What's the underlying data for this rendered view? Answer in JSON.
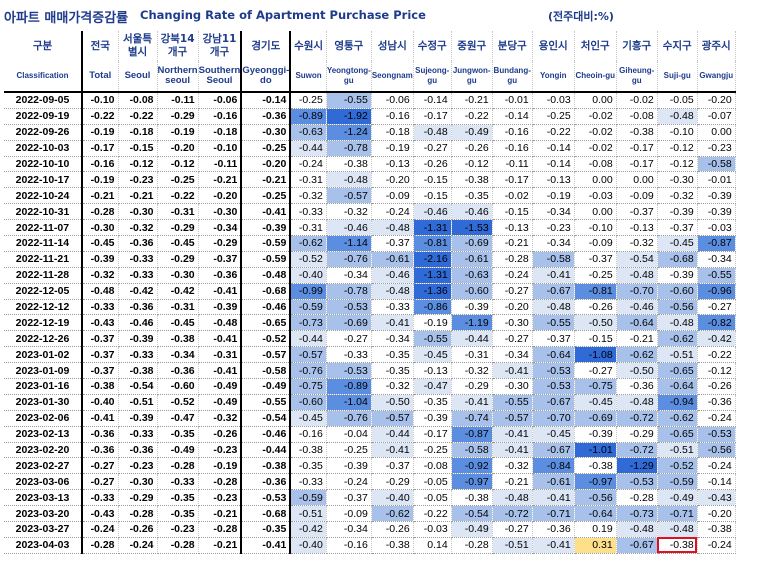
{
  "title": {
    "korean": "아파트 매매가격증감률",
    "english": "Changing Rate of Apartment Purchase Price",
    "unit": "(전주대비:%)"
  },
  "header": {
    "top": [
      "구분",
      "전국",
      "서울특별시",
      "강북14개구",
      "강남11개구",
      "경기도",
      "수원시",
      "영통구",
      "성남시",
      "수정구",
      "중원구",
      "분당구",
      "용인시",
      "처인구",
      "기흥구",
      "수지구",
      "광주시"
    ],
    "bottom": [
      "Classification",
      "Total",
      "Seoul",
      "Northern seoul",
      "Southern Seoul",
      "Gyeonggi-do",
      "Suwon",
      "Yeongtong-gu",
      "Seongnam",
      "Sujeong-gu",
      "Jungwon-gu",
      "Bundang-gu",
      "Yongin",
      "Cheoin-gu",
      "Giheung-gu",
      "Suji-gu",
      "Gwangju"
    ]
  },
  "colors": {
    "title_blue": "#1f3c8c",
    "shade_light": "#dce6f5",
    "shade_mid": "#a8c1ea",
    "shade_strong": "#5b8ee0",
    "shade_dark": "#2f6ad6",
    "highlight_yellow": "#ffe08a",
    "highlight_red_border": "#e01020"
  },
  "rows": [
    {
      "date": "2022-09-05",
      "values": [
        "-0.10",
        "-0.08",
        "-0.11",
        "-0.06",
        "-0.14",
        "-0.25",
        "-0.55",
        "-0.06",
        "-0.14",
        "-0.21",
        "-0.01",
        "-0.03",
        "0.00",
        "-0.02",
        "-0.05",
        "-0.20"
      ],
      "shade": [
        0,
        0,
        0,
        0,
        0,
        0,
        2,
        0,
        0,
        0,
        0,
        0,
        0,
        0,
        0,
        0
      ]
    },
    {
      "date": "2022-09-19",
      "values": [
        "-0.22",
        "-0.22",
        "-0.29",
        "-0.16",
        "-0.36",
        "-0.89",
        "-1.92",
        "-0.16",
        "-0.17",
        "-0.22",
        "-0.14",
        "-0.25",
        "-0.02",
        "-0.08",
        "-0.48",
        "-0.07"
      ],
      "shade": [
        0,
        0,
        0,
        0,
        0,
        3,
        4,
        0,
        0,
        0,
        0,
        0,
        0,
        0,
        1,
        0
      ]
    },
    {
      "date": "2022-09-26",
      "values": [
        "-0.19",
        "-0.18",
        "-0.19",
        "-0.18",
        "-0.30",
        "-0.63",
        "-1.24",
        "-0.18",
        "-0.48",
        "-0.49",
        "-0.16",
        "-0.22",
        "-0.02",
        "-0.38",
        "-0.10",
        "0.00"
      ],
      "shade": [
        0,
        0,
        0,
        0,
        0,
        2,
        3,
        0,
        1,
        1,
        0,
        0,
        0,
        0,
        0,
        0
      ]
    },
    {
      "date": "2022-10-03",
      "values": [
        "-0.17",
        "-0.15",
        "-0.20",
        "-0.10",
        "-0.25",
        "-0.44",
        "-0.78",
        "-0.19",
        "-0.27",
        "-0.26",
        "-0.16",
        "-0.14",
        "-0.02",
        "-0.17",
        "-0.12",
        "-0.23"
      ],
      "shade": [
        0,
        0,
        0,
        0,
        0,
        1,
        2,
        0,
        0,
        0,
        0,
        0,
        0,
        0,
        0,
        0
      ]
    },
    {
      "date": "2022-10-10",
      "values": [
        "-0.16",
        "-0.12",
        "-0.12",
        "-0.11",
        "-0.20",
        "-0.24",
        "-0.38",
        "-0.13",
        "-0.26",
        "-0.12",
        "-0.11",
        "-0.14",
        "-0.08",
        "-0.17",
        "-0.12",
        "-0.58"
      ],
      "shade": [
        0,
        0,
        0,
        0,
        0,
        0,
        0,
        0,
        0,
        0,
        0,
        0,
        0,
        0,
        0,
        2
      ]
    },
    {
      "date": "2022-10-17",
      "values": [
        "-0.19",
        "-0.23",
        "-0.25",
        "-0.21",
        "-0.21",
        "-0.31",
        "-0.48",
        "-0.20",
        "-0.15",
        "-0.38",
        "-0.17",
        "-0.13",
        "0.00",
        "0.00",
        "-0.30",
        "-0.01"
      ],
      "shade": [
        0,
        0,
        0,
        0,
        0,
        0,
        1,
        0,
        0,
        0,
        0,
        0,
        0,
        0,
        0,
        0
      ]
    },
    {
      "date": "2022-10-24",
      "values": [
        "-0.21",
        "-0.21",
        "-0.22",
        "-0.20",
        "-0.25",
        "-0.32",
        "-0.57",
        "-0.09",
        "-0.15",
        "-0.35",
        "-0.02",
        "-0.19",
        "-0.03",
        "-0.09",
        "-0.32",
        "-0.39"
      ],
      "shade": [
        0,
        0,
        0,
        0,
        0,
        0,
        2,
        0,
        0,
        0,
        0,
        0,
        0,
        0,
        0,
        0
      ]
    },
    {
      "date": "2022-10-31",
      "values": [
        "-0.28",
        "-0.30",
        "-0.31",
        "-0.30",
        "-0.41",
        "-0.33",
        "-0.32",
        "-0.24",
        "-0.46",
        "-0.46",
        "-0.15",
        "-0.34",
        "0.00",
        "-0.37",
        "-0.39",
        "-0.39"
      ],
      "shade": [
        0,
        0,
        0,
        0,
        0,
        0,
        0,
        0,
        1,
        1,
        0,
        0,
        0,
        0,
        0,
        0
      ]
    },
    {
      "date": "2022-11-07",
      "values": [
        "-0.30",
        "-0.32",
        "-0.29",
        "-0.34",
        "-0.39",
        "-0.31",
        "-0.46",
        "-0.48",
        "-1.31",
        "-1.53",
        "-0.13",
        "-0.23",
        "-0.10",
        "-0.13",
        "-0.37",
        "-0.03"
      ],
      "shade": [
        0,
        0,
        0,
        0,
        0,
        0,
        1,
        1,
        4,
        4,
        0,
        0,
        0,
        0,
        0,
        0
      ]
    },
    {
      "date": "2022-11-14",
      "values": [
        "-0.45",
        "-0.36",
        "-0.45",
        "-0.29",
        "-0.59",
        "-0.62",
        "-1.14",
        "-0.37",
        "-0.81",
        "-0.69",
        "-0.21",
        "-0.34",
        "-0.09",
        "-0.32",
        "-0.45",
        "-0.87"
      ],
      "shade": [
        0,
        0,
        0,
        0,
        0,
        2,
        3,
        0,
        3,
        2,
        0,
        0,
        0,
        0,
        1,
        3
      ]
    },
    {
      "date": "2022-11-21",
      "values": [
        "-0.39",
        "-0.33",
        "-0.29",
        "-0.37",
        "-0.59",
        "-0.52",
        "-0.76",
        "-0.61",
        "-2.16",
        "-0.61",
        "-0.28",
        "-0.58",
        "-0.37",
        "-0.54",
        "-0.68",
        "-0.34"
      ],
      "shade": [
        0,
        0,
        0,
        0,
        0,
        1,
        2,
        2,
        4,
        2,
        0,
        2,
        0,
        1,
        2,
        0
      ]
    },
    {
      "date": "2022-11-28",
      "values": [
        "-0.32",
        "-0.33",
        "-0.30",
        "-0.36",
        "-0.48",
        "-0.40",
        "-0.34",
        "-0.46",
        "-1.31",
        "-0.63",
        "-0.24",
        "-0.41",
        "-0.25",
        "-0.48",
        "-0.39",
        "-0.55"
      ],
      "shade": [
        0,
        0,
        0,
        0,
        0,
        1,
        0,
        1,
        4,
        2,
        0,
        1,
        0,
        1,
        0,
        2
      ]
    },
    {
      "date": "2022-12-05",
      "values": [
        "-0.48",
        "-0.42",
        "-0.42",
        "-0.41",
        "-0.68",
        "-0.99",
        "-0.78",
        "-0.48",
        "-1.36",
        "-0.60",
        "-0.27",
        "-0.67",
        "-0.81",
        "-0.70",
        "-0.60",
        "-0.96"
      ],
      "shade": [
        0,
        0,
        0,
        0,
        0,
        3,
        2,
        1,
        4,
        2,
        0,
        2,
        3,
        2,
        2,
        3
      ]
    },
    {
      "date": "2022-12-12",
      "values": [
        "-0.33",
        "-0.36",
        "-0.31",
        "-0.39",
        "-0.46",
        "-0.59",
        "-0.53",
        "-0.33",
        "-0.86",
        "-0.39",
        "-0.20",
        "-0.48",
        "-0.26",
        "-0.46",
        "-0.56",
        "-0.27"
      ],
      "shade": [
        0,
        0,
        0,
        0,
        0,
        2,
        2,
        0,
        3,
        0,
        0,
        1,
        0,
        1,
        2,
        0
      ]
    },
    {
      "date": "2022-12-19",
      "values": [
        "-0.43",
        "-0.46",
        "-0.45",
        "-0.48",
        "-0.65",
        "-0.73",
        "-0.69",
        "-0.41",
        "-0.19",
        "-1.19",
        "-0.30",
        "-0.55",
        "-0.50",
        "-0.64",
        "-0.48",
        "-0.82"
      ],
      "shade": [
        0,
        0,
        0,
        0,
        0,
        2,
        2,
        1,
        0,
        3,
        0,
        2,
        1,
        2,
        1,
        3
      ]
    },
    {
      "date": "2022-12-26",
      "values": [
        "-0.37",
        "-0.39",
        "-0.38",
        "-0.41",
        "-0.52",
        "-0.44",
        "-0.27",
        "-0.34",
        "-0.55",
        "-0.44",
        "-0.27",
        "-0.37",
        "-0.15",
        "-0.21",
        "-0.62",
        "-0.42"
      ],
      "shade": [
        0,
        0,
        0,
        0,
        0,
        1,
        0,
        0,
        2,
        1,
        0,
        0,
        0,
        0,
        2,
        1
      ]
    },
    {
      "date": "2023-01-02",
      "values": [
        "-0.37",
        "-0.33",
        "-0.34",
        "-0.31",
        "-0.57",
        "-0.57",
        "-0.33",
        "-0.35",
        "-0.45",
        "-0.31",
        "-0.34",
        "-0.64",
        "-1.08",
        "-0.62",
        "-0.51",
        "-0.22"
      ],
      "shade": [
        0,
        0,
        0,
        0,
        0,
        2,
        0,
        0,
        1,
        0,
        0,
        2,
        4,
        2,
        1,
        0
      ]
    },
    {
      "date": "2023-01-09",
      "values": [
        "-0.37",
        "-0.38",
        "-0.36",
        "-0.41",
        "-0.58",
        "-0.76",
        "-0.53",
        "-0.35",
        "-0.13",
        "-0.32",
        "-0.41",
        "-0.53",
        "-0.27",
        "-0.50",
        "-0.65",
        "-0.12"
      ],
      "shade": [
        0,
        0,
        0,
        0,
        0,
        2,
        2,
        0,
        0,
        0,
        1,
        2,
        0,
        1,
        2,
        0
      ]
    },
    {
      "date": "2023-01-16",
      "values": [
        "-0.38",
        "-0.54",
        "-0.60",
        "-0.49",
        "-0.49",
        "-0.75",
        "-0.89",
        "-0.32",
        "-0.47",
        "-0.29",
        "-0.30",
        "-0.53",
        "-0.75",
        "-0.36",
        "-0.64",
        "-0.26"
      ],
      "shade": [
        0,
        0,
        0,
        0,
        0,
        2,
        3,
        0,
        1,
        0,
        0,
        2,
        2,
        0,
        2,
        0
      ]
    },
    {
      "date": "2023-01-30",
      "values": [
        "-0.40",
        "-0.51",
        "-0.52",
        "-0.49",
        "-0.55",
        "-0.60",
        "-1.04",
        "-0.50",
        "-0.35",
        "-0.41",
        "-0.55",
        "-0.67",
        "-0.45",
        "-0.48",
        "-0.94",
        "-0.36"
      ],
      "shade": [
        0,
        0,
        0,
        0,
        0,
        2,
        3,
        1,
        0,
        1,
        2,
        2,
        1,
        1,
        3,
        0
      ]
    },
    {
      "date": "2023-02-06",
      "values": [
        "-0.41",
        "-0.39",
        "-0.47",
        "-0.32",
        "-0.54",
        "-0.45",
        "-0.76",
        "-0.57",
        "-0.39",
        "-0.74",
        "-0.57",
        "-0.70",
        "-0.69",
        "-0.72",
        "-0.62",
        "-0.24"
      ],
      "shade": [
        0,
        0,
        0,
        0,
        0,
        1,
        2,
        2,
        0,
        2,
        2,
        2,
        2,
        2,
        2,
        0
      ]
    },
    {
      "date": "2023-02-13",
      "values": [
        "-0.36",
        "-0.33",
        "-0.35",
        "-0.26",
        "-0.46",
        "-0.16",
        "-0.04",
        "-0.44",
        "-0.17",
        "-0.87",
        "-0.41",
        "-0.45",
        "-0.39",
        "-0.29",
        "-0.65",
        "-0.53"
      ],
      "shade": [
        0,
        0,
        0,
        0,
        0,
        0,
        0,
        1,
        0,
        3,
        1,
        1,
        0,
        0,
        2,
        2
      ]
    },
    {
      "date": "2023-02-20",
      "values": [
        "-0.36",
        "-0.36",
        "-0.49",
        "-0.23",
        "-0.44",
        "-0.38",
        "-0.25",
        "-0.41",
        "-0.25",
        "-0.58",
        "-0.41",
        "-0.67",
        "-1.01",
        "-0.72",
        "-0.51",
        "-0.56"
      ],
      "shade": [
        0,
        0,
        0,
        0,
        0,
        0,
        0,
        1,
        0,
        2,
        1,
        2,
        4,
        2,
        1,
        2
      ]
    },
    {
      "date": "2023-02-27",
      "values": [
        "-0.27",
        "-0.23",
        "-0.28",
        "-0.19",
        "-0.38",
        "-0.35",
        "-0.39",
        "-0.37",
        "-0.08",
        "-0.92",
        "-0.32",
        "-0.84",
        "-0.38",
        "-1.29",
        "-0.52",
        "-0.24"
      ],
      "shade": [
        0,
        0,
        0,
        0,
        0,
        0,
        0,
        0,
        0,
        3,
        0,
        3,
        0,
        4,
        2,
        0
      ]
    },
    {
      "date": "2023-03-06",
      "values": [
        "-0.27",
        "-0.30",
        "-0.33",
        "-0.28",
        "-0.36",
        "-0.33",
        "-0.24",
        "-0.29",
        "-0.05",
        "-0.97",
        "-0.21",
        "-0.61",
        "-0.97",
        "-0.53",
        "-0.59",
        "-0.14"
      ],
      "shade": [
        0,
        0,
        0,
        0,
        0,
        0,
        0,
        0,
        0,
        3,
        0,
        2,
        3,
        2,
        2,
        0
      ]
    },
    {
      "date": "2023-03-13",
      "values": [
        "-0.33",
        "-0.29",
        "-0.35",
        "-0.23",
        "-0.53",
        "-0.59",
        "-0.37",
        "-0.40",
        "-0.05",
        "-0.38",
        "-0.48",
        "-0.41",
        "-0.56",
        "-0.28",
        "-0.49",
        "-0.43"
      ],
      "shade": [
        0,
        0,
        0,
        0,
        0,
        2,
        0,
        1,
        0,
        0,
        1,
        1,
        2,
        0,
        1,
        1
      ]
    },
    {
      "date": "2023-03-20",
      "values": [
        "-0.43",
        "-0.28",
        "-0.35",
        "-0.21",
        "-0.68",
        "-0.51",
        "-0.09",
        "-0.62",
        "-0.22",
        "-0.54",
        "-0.72",
        "-0.71",
        "-0.64",
        "-0.73",
        "-0.71",
        "-0.20"
      ],
      "shade": [
        0,
        0,
        0,
        0,
        0,
        1,
        0,
        2,
        0,
        2,
        2,
        2,
        2,
        2,
        2,
        0
      ]
    },
    {
      "date": "2023-03-27",
      "values": [
        "-0.24",
        "-0.26",
        "-0.23",
        "-0.28",
        "-0.35",
        "-0.42",
        "-0.34",
        "-0.26",
        "-0.03",
        "-0.49",
        "-0.27",
        "-0.36",
        "0.19",
        "-0.48",
        "-0.48",
        "-0.38"
      ],
      "shade": [
        0,
        0,
        0,
        0,
        0,
        1,
        0,
        0,
        0,
        1,
        0,
        0,
        0,
        1,
        1,
        0
      ]
    },
    {
      "date": "2023-04-03",
      "values": [
        "-0.28",
        "-0.24",
        "-0.28",
        "-0.21",
        "-0.41",
        "-0.40",
        "-0.16",
        "-0.38",
        "0.14",
        "-0.28",
        "-0.51",
        "-0.41",
        "0.31",
        "-0.67",
        "-0.38",
        "-0.24"
      ],
      "shade": [
        0,
        0,
        0,
        0,
        0,
        1,
        0,
        0,
        0,
        0,
        1,
        1,
        5,
        2,
        0,
        0
      ],
      "red_box_col": 14
    }
  ]
}
